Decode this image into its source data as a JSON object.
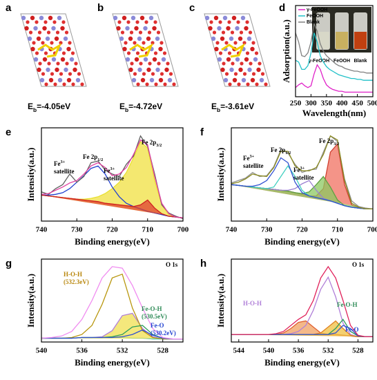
{
  "structures": [
    {
      "label": "a",
      "energy": {
        "text": "E",
        "sub": "b",
        "tail": "=-4.05eV"
      }
    },
    {
      "label": "b",
      "energy": {
        "text": "E",
        "sub": "b",
        "tail": "=-4.72eV"
      }
    },
    {
      "label": "c",
      "energy": {
        "text": "E",
        "sub": "b",
        "tail": "=-3.61eV"
      }
    }
  ],
  "chart_data": [
    {
      "type": "line",
      "panel": "d",
      "xlabel": "Wavelength(nm)",
      "ylabel": "Adsorption(a.u.)",
      "xlim": [
        250,
        500
      ],
      "xticks": [
        250,
        300,
        350,
        400,
        450,
        500
      ],
      "ylim": [
        0,
        1
      ],
      "photo_labels": [
        "γ-FeOOH",
        "FeOOH",
        "Blank"
      ],
      "x": [
        250,
        260,
        270,
        280,
        290,
        300,
        310,
        320,
        330,
        340,
        350,
        360,
        370,
        380,
        390,
        400,
        410,
        420,
        430,
        440,
        450,
        460,
        470,
        480,
        490,
        500
      ],
      "series": [
        {
          "name": "γ-FeOOH",
          "color": "#e020c8",
          "values": [
            0.1,
            0.13,
            0.15,
            0.12,
            0.1,
            0.12,
            0.25,
            0.35,
            0.3,
            0.2,
            0.13,
            0.1,
            0.08,
            0.07,
            0.06,
            0.06,
            0.05,
            0.05,
            0.05,
            0.05,
            0.05,
            0.05,
            0.05,
            0.05,
            0.05,
            0.05
          ]
        },
        {
          "name": "FeOOH",
          "color": "#20c0c8",
          "values": [
            0.4,
            0.38,
            0.3,
            0.3,
            0.34,
            0.48,
            0.7,
            0.6,
            0.45,
            0.38,
            0.33,
            0.3,
            0.28,
            0.26,
            0.24,
            0.23,
            0.22,
            0.21,
            0.2,
            0.2,
            0.19,
            0.19,
            0.18,
            0.18,
            0.18,
            0.18
          ]
        },
        {
          "name": "Blank",
          "color": "#808080",
          "values": [
            0.7,
            0.6,
            0.45,
            0.44,
            0.48,
            0.6,
            0.8,
            0.72,
            0.58,
            0.5,
            0.45,
            0.42,
            0.39,
            0.36,
            0.34,
            0.33,
            0.31,
            0.3,
            0.29,
            0.28,
            0.28,
            0.27,
            0.27,
            0.26,
            0.26,
            0.26
          ]
        }
      ]
    },
    {
      "type": "line",
      "panel": "e",
      "xlabel": "Binding energy(eV)",
      "ylabel": "Intensity(a.u.)",
      "xlim": [
        740,
        700
      ],
      "xticks": [
        740,
        730,
        720,
        710,
        700
      ],
      "ylim": [
        0,
        1.15
      ],
      "annotations": [
        {
          "text": "Fe",
          "sup": "3+",
          "line2": "satellite"
        },
        {
          "text": "Fe 2p",
          "sub": "1/2"
        },
        {
          "text": "Fe",
          "sup": "3+",
          "line2": "satellite"
        },
        {
          "text": "Fe 2p",
          "sub": "3/2"
        }
      ],
      "x": [
        740,
        738,
        736,
        734,
        732,
        730,
        728,
        726,
        724,
        722,
        720,
        718,
        716,
        714,
        712,
        710,
        708,
        706,
        704,
        702,
        700
      ],
      "series": [
        {
          "color": "#7a3b1a",
          "values": [
            0.32,
            0.31,
            0.3,
            0.29,
            0.28,
            0.27,
            0.26,
            0.25,
            0.24,
            0.22,
            0.21,
            0.2,
            0.19,
            0.17,
            0.15,
            0.12,
            0.1,
            0.08,
            0.06,
            0.05,
            0.04
          ]
        },
        {
          "color": "#e8e030",
          "fill": "#f0e040",
          "values": [
            0.32,
            0.31,
            0.3,
            0.29,
            0.28,
            0.27,
            0.27,
            0.28,
            0.3,
            0.34,
            0.4,
            0.48,
            0.6,
            0.78,
            0.98,
            0.9,
            0.5,
            0.2,
            0.08,
            0.05,
            0.04
          ]
        },
        {
          "color": "#2040d0",
          "values": [
            0.32,
            0.32,
            0.33,
            0.35,
            0.4,
            0.48,
            0.56,
            0.65,
            0.68,
            0.58,
            0.42,
            0.3,
            0.22,
            0.18,
            0.15,
            0.12,
            0.1,
            0.08,
            0.06,
            0.05,
            0.04
          ]
        },
        {
          "color": "#d02020",
          "fill": "#e04030",
          "values": [
            0.32,
            0.31,
            0.3,
            0.29,
            0.28,
            0.27,
            0.26,
            0.25,
            0.24,
            0.22,
            0.21,
            0.2,
            0.19,
            0.18,
            0.2,
            0.26,
            0.16,
            0.09,
            0.06,
            0.05,
            0.04
          ]
        },
        {
          "color": "#606060",
          "values": [
            0.36,
            0.33,
            0.4,
            0.45,
            0.58,
            0.48,
            0.55,
            0.72,
            0.74,
            0.63,
            0.58,
            0.55,
            0.7,
            0.8,
            1.05,
            0.92,
            0.58,
            0.2,
            0.1,
            0.06,
            0.03
          ]
        },
        {
          "color": "#e040a0",
          "values": [
            0.33,
            0.34,
            0.38,
            0.42,
            0.47,
            0.5,
            0.58,
            0.68,
            0.72,
            0.66,
            0.56,
            0.58,
            0.66,
            0.82,
            1.0,
            0.94,
            0.55,
            0.22,
            0.09,
            0.05,
            0.04
          ]
        }
      ]
    },
    {
      "type": "line",
      "panel": "f",
      "xlabel": "Binding energy(eV)",
      "ylabel": "Intensity(a.u.)",
      "xlim": [
        740,
        700
      ],
      "xticks": [
        740,
        730,
        720,
        710,
        700
      ],
      "ylim": [
        0,
        1.15
      ],
      "annotations": [
        {
          "text": "Fe",
          "sup": "3+",
          "line2": "satellite"
        },
        {
          "text": "Fe 2p",
          "sub": "1/2"
        },
        {
          "text": "Fe",
          "sup": "3+",
          "line2": "satellite"
        },
        {
          "text": "Fe 2p",
          "sub": "3/2"
        }
      ],
      "x": [
        740,
        738,
        736,
        734,
        732,
        730,
        728,
        726,
        724,
        722,
        720,
        718,
        716,
        714,
        712,
        710,
        708,
        706,
        704,
        702,
        700
      ],
      "series": [
        {
          "color": "#404040",
          "values": [
            0.45,
            0.44,
            0.43,
            0.42,
            0.41,
            0.4,
            0.39,
            0.38,
            0.37,
            0.35,
            0.33,
            0.31,
            0.29,
            0.27,
            0.25,
            0.22,
            0.19,
            0.17,
            0.16,
            0.15,
            0.15
          ]
        },
        {
          "color": "#d04030",
          "fill": "#f07060",
          "values": [
            0.45,
            0.44,
            0.43,
            0.42,
            0.41,
            0.4,
            0.39,
            0.38,
            0.37,
            0.35,
            0.33,
            0.31,
            0.31,
            0.4,
            0.85,
            0.95,
            0.45,
            0.2,
            0.16,
            0.15,
            0.15
          ]
        },
        {
          "color": "#5ca040",
          "fill": "#8cc860",
          "values": [
            0.45,
            0.44,
            0.43,
            0.42,
            0.41,
            0.4,
            0.39,
            0.38,
            0.37,
            0.35,
            0.34,
            0.36,
            0.45,
            0.55,
            0.42,
            0.26,
            0.19,
            0.17,
            0.16,
            0.15,
            0.15
          ]
        },
        {
          "color": "#9a7fd1",
          "values": [
            0.45,
            0.44,
            0.43,
            0.42,
            0.41,
            0.4,
            0.39,
            0.38,
            0.38,
            0.4,
            0.46,
            0.5,
            0.38,
            0.28,
            0.25,
            0.22,
            0.19,
            0.17,
            0.16,
            0.15,
            0.15
          ]
        },
        {
          "color": "#40d0c0",
          "values": [
            0.45,
            0.44,
            0.43,
            0.42,
            0.41,
            0.4,
            0.42,
            0.55,
            0.68,
            0.55,
            0.38,
            0.31,
            0.29,
            0.27,
            0.25,
            0.22,
            0.19,
            0.17,
            0.16,
            0.15,
            0.15
          ]
        },
        {
          "color": "#3050d0",
          "values": [
            0.45,
            0.44,
            0.43,
            0.43,
            0.45,
            0.5,
            0.62,
            0.78,
            0.72,
            0.48,
            0.35,
            0.31,
            0.29,
            0.27,
            0.25,
            0.22,
            0.19,
            0.17,
            0.16,
            0.15,
            0.15
          ]
        },
        {
          "color": "#909090",
          "values": [
            0.47,
            0.5,
            0.53,
            0.6,
            0.55,
            0.56,
            0.67,
            0.88,
            0.84,
            0.7,
            0.6,
            0.63,
            0.64,
            0.85,
            1.05,
            0.98,
            0.52,
            0.25,
            0.18,
            0.16,
            0.15
          ]
        },
        {
          "color": "#8a8a20",
          "values": [
            0.46,
            0.48,
            0.52,
            0.58,
            0.56,
            0.55,
            0.66,
            0.86,
            0.86,
            0.68,
            0.62,
            0.62,
            0.66,
            0.82,
            1.05,
            1.0,
            0.5,
            0.22,
            0.17,
            0.15,
            0.15
          ]
        }
      ]
    },
    {
      "type": "line",
      "panel": "g",
      "xlabel": "Binding energy(eV)",
      "ylabel": "Intensity(a.u.)",
      "xlim": [
        540,
        526
      ],
      "xticks": [
        540,
        536,
        532,
        528
      ],
      "ylim": [
        0,
        1.1
      ],
      "annotations": [
        {
          "text": "O 1s"
        },
        {
          "text": "H-O-H",
          "line2": "(532.3eV)",
          "color": "#b8860b"
        },
        {
          "text": "Fe-O-H",
          "line2": "(530.5eV)",
          "color": "#2e8b57"
        },
        {
          "text": "Fe-O",
          "line2": "(530.2eV)",
          "color": "#2040d0"
        }
      ],
      "x": [
        540,
        539,
        538,
        537,
        536,
        535,
        534,
        533,
        532,
        531,
        530,
        529,
        528,
        527,
        526
      ],
      "series": [
        {
          "color": "#30c0c0",
          "values": [
            0.05,
            0.05,
            0.05,
            0.05,
            0.06,
            0.06,
            0.06,
            0.06,
            0.06,
            0.05,
            0.05,
            0.04,
            0.04,
            0.04,
            0.04
          ]
        },
        {
          "color": "#b07fd8",
          "fill": "#f0e050",
          "values": [
            0.05,
            0.05,
            0.05,
            0.05,
            0.06,
            0.06,
            0.07,
            0.15,
            0.35,
            0.38,
            0.18,
            0.07,
            0.04,
            0.04,
            0.04
          ]
        },
        {
          "color": "#b8960c",
          "values": [
            0.05,
            0.05,
            0.05,
            0.06,
            0.1,
            0.22,
            0.5,
            0.85,
            0.9,
            0.45,
            0.15,
            0.06,
            0.04,
            0.04,
            0.04
          ]
        },
        {
          "color": "#2e9e5a",
          "values": [
            0.05,
            0.05,
            0.05,
            0.05,
            0.06,
            0.06,
            0.06,
            0.07,
            0.1,
            0.2,
            0.22,
            0.1,
            0.05,
            0.04,
            0.04
          ]
        },
        {
          "color": "#3050d0",
          "values": [
            0.05,
            0.05,
            0.05,
            0.05,
            0.06,
            0.06,
            0.06,
            0.06,
            0.07,
            0.1,
            0.16,
            0.09,
            0.05,
            0.04,
            0.04
          ]
        },
        {
          "color": "#f08bf0",
          "values": [
            0.05,
            0.06,
            0.08,
            0.14,
            0.3,
            0.55,
            0.85,
            1.0,
            0.98,
            0.75,
            0.45,
            0.18,
            0.06,
            0.04,
            0.04
          ]
        }
      ]
    },
    {
      "type": "line",
      "panel": "h",
      "xlabel": "Binding energy(eV)",
      "ylabel": "Intensity(a.u.)",
      "xlim": [
        545,
        526
      ],
      "xticks": [
        544,
        540,
        536,
        532,
        528
      ],
      "ylim": [
        0,
        1.1
      ],
      "annotations": [
        {
          "text": "O 1s"
        },
        {
          "text": "H-O-H",
          "color": "#b07fd8"
        },
        {
          "text": "Fe-O-H",
          "color": "#2e8b57"
        },
        {
          "text": "Fe-O",
          "color": "#2040d0"
        }
      ],
      "x": [
        545,
        544,
        543,
        542,
        541,
        540,
        539,
        538,
        537,
        536,
        535,
        534,
        533,
        532,
        531,
        530,
        529,
        528,
        527,
        526
      ],
      "series": [
        {
          "color": "#30c0c0",
          "values": [
            0.1,
            0.1,
            0.1,
            0.1,
            0.1,
            0.1,
            0.1,
            0.1,
            0.1,
            0.1,
            0.1,
            0.1,
            0.1,
            0.1,
            0.1,
            0.09,
            0.08,
            0.07,
            0.07,
            0.07
          ]
        },
        {
          "color": "#e06030",
          "fill": "#f0a060",
          "values": [
            0.1,
            0.1,
            0.1,
            0.1,
            0.1,
            0.1,
            0.1,
            0.12,
            0.18,
            0.26,
            0.28,
            0.2,
            0.12,
            0.1,
            0.1,
            0.09,
            0.08,
            0.07,
            0.07,
            0.07
          ]
        },
        {
          "color": "#b07fd8",
          "values": [
            0.1,
            0.1,
            0.1,
            0.1,
            0.1,
            0.1,
            0.1,
            0.1,
            0.11,
            0.14,
            0.22,
            0.42,
            0.7,
            0.86,
            0.6,
            0.25,
            0.1,
            0.07,
            0.07,
            0.07
          ]
        },
        {
          "color": "#e08020",
          "fill": "#f0c040",
          "values": [
            0.1,
            0.1,
            0.1,
            0.1,
            0.1,
            0.1,
            0.1,
            0.1,
            0.1,
            0.1,
            0.1,
            0.1,
            0.12,
            0.2,
            0.28,
            0.18,
            0.09,
            0.07,
            0.07,
            0.07
          ]
        },
        {
          "color": "#2e9e5a",
          "values": [
            0.1,
            0.1,
            0.1,
            0.1,
            0.1,
            0.1,
            0.1,
            0.1,
            0.1,
            0.1,
            0.1,
            0.1,
            0.1,
            0.1,
            0.18,
            0.3,
            0.14,
            0.08,
            0.07,
            0.07
          ]
        },
        {
          "color": "#3050d0",
          "values": [
            0.1,
            0.1,
            0.1,
            0.1,
            0.1,
            0.1,
            0.1,
            0.1,
            0.1,
            0.1,
            0.1,
            0.1,
            0.1,
            0.1,
            0.12,
            0.22,
            0.18,
            0.08,
            0.07,
            0.07
          ]
        },
        {
          "color": "#e0205a",
          "values": [
            0.1,
            0.1,
            0.1,
            0.1,
            0.1,
            0.1,
            0.11,
            0.14,
            0.22,
            0.3,
            0.36,
            0.55,
            0.85,
            1.0,
            0.85,
            0.55,
            0.22,
            0.09,
            0.07,
            0.07
          ]
        }
      ]
    }
  ]
}
